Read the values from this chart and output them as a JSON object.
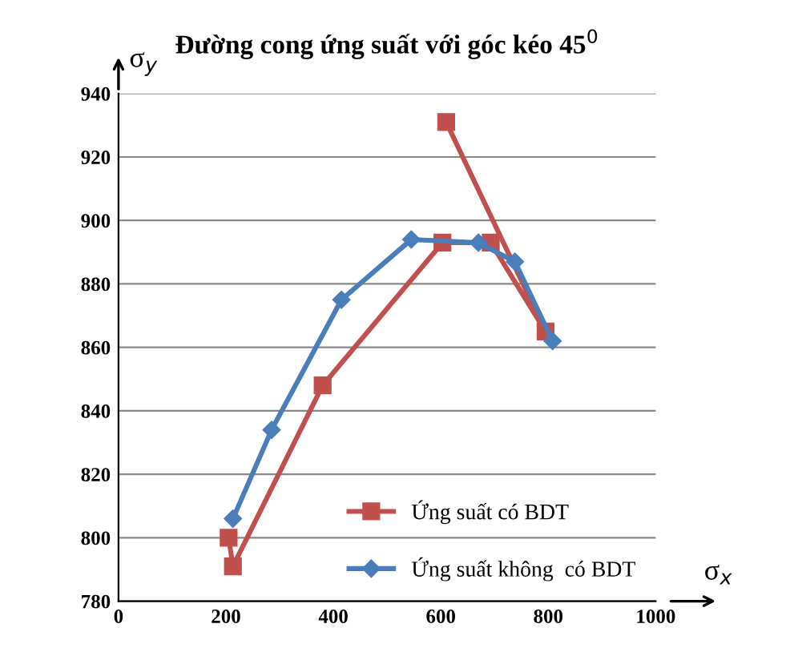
{
  "chart_data": {
    "type": "line",
    "title": "Đường cong ứng suất với góc kéo 45$^{0}$",
    "xlabel": "σ$_{x}$",
    "ylabel": "σ$_{y}$",
    "series": [
      {
        "name": "Ứng suất có BDT",
        "color": "#c0504d",
        "marker": "square",
        "x": [
          205,
          213,
          380,
          603,
          693,
          795,
          610
        ],
        "values": [
          800,
          791,
          848,
          893,
          893,
          865,
          931
        ]
      },
      {
        "name": "Ứng suất không  có BDT",
        "color": "#4a7ebb",
        "marker": "diamond",
        "x": [
          213,
          285,
          415,
          545,
          670,
          738,
          808
        ],
        "values": [
          806,
          834,
          875,
          894,
          893,
          887,
          862
        ]
      }
    ],
    "xlim": [
      0,
      1000
    ],
    "xticks": [
      0,
      200,
      400,
      600,
      800,
      1000
    ],
    "ylim": [
      780,
      940
    ],
    "yticks": [
      780,
      800,
      820,
      840,
      860,
      880,
      900,
      920,
      940
    ],
    "grid": "y",
    "legend": "lower right",
    "line_style": "solid"
  }
}
